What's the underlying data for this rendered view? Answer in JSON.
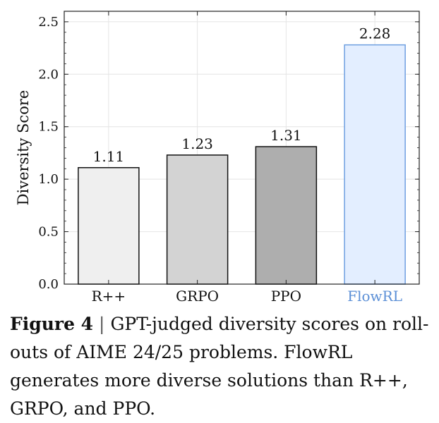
{
  "chart_data": {
    "type": "bar",
    "categories": [
      "R++",
      "GRPO",
      "PPO",
      "FlowRL"
    ],
    "values": [
      1.11,
      1.23,
      1.31,
      2.28
    ],
    "data_labels": [
      "1.11",
      "1.23",
      "1.31",
      "2.28"
    ],
    "title": "",
    "xlabel": "",
    "ylabel": "Diversity Score",
    "ylim": [
      0.0,
      2.6
    ],
    "yticks": [
      0.0,
      0.5,
      1.0,
      1.5,
      2.0,
      2.5
    ],
    "ytick_labels": [
      "0.0",
      "0.5",
      "1.0",
      "1.5",
      "2.0",
      "2.5"
    ],
    "grid": true,
    "bar_fills": [
      "#efefef",
      "#d3d3d3",
      "#aeaeae",
      "#e3eeff"
    ],
    "bar_strokes": [
      "#111111",
      "#111111",
      "#111111",
      "#6e9fe0"
    ],
    "tick_label_colors": [
      "#111111",
      "#111111",
      "#111111",
      "#5b8fd6"
    ]
  },
  "caption": {
    "label": "Figure 4",
    "separator": "|",
    "text": "GPT-judged diversity scores on roll-outs of AIME 24/25 problems. FlowRL generates more diverse solutions than R++, GRPO, and PPO."
  }
}
